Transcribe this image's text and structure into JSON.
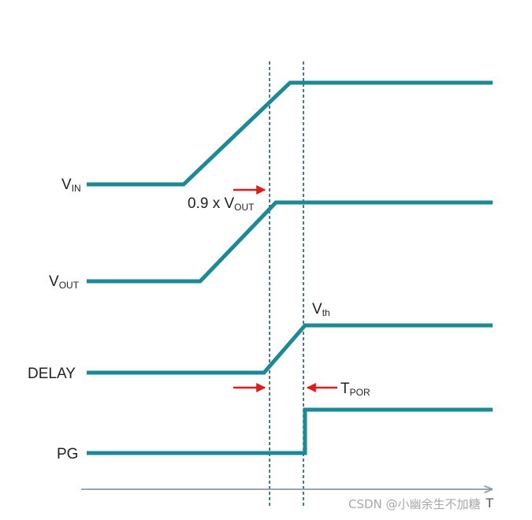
{
  "signals": [
    {
      "id": "vin",
      "label_main": "V",
      "label_sub": "IN"
    },
    {
      "id": "vout",
      "label_main": "V",
      "label_sub": "OUT"
    },
    {
      "id": "delay",
      "label_main": "DELAY",
      "label_sub": ""
    },
    {
      "id": "pg",
      "label_main": "PG",
      "label_sub": ""
    }
  ],
  "annotations": {
    "vout_threshold": {
      "prefix": "0.9 x V",
      "sub": "OUT"
    },
    "vth": {
      "main": "V",
      "sub": "th"
    },
    "tpor": {
      "main": "T",
      "sub": "POR"
    }
  },
  "time_axis": {
    "label": "T"
  },
  "watermark": "CSDN @小幽余生不加糖",
  "colors": {
    "signal": "#1b8a96",
    "marker": "#1e5a6e",
    "arrow": "#e01b1b",
    "axis": "#8a9aa6"
  }
}
